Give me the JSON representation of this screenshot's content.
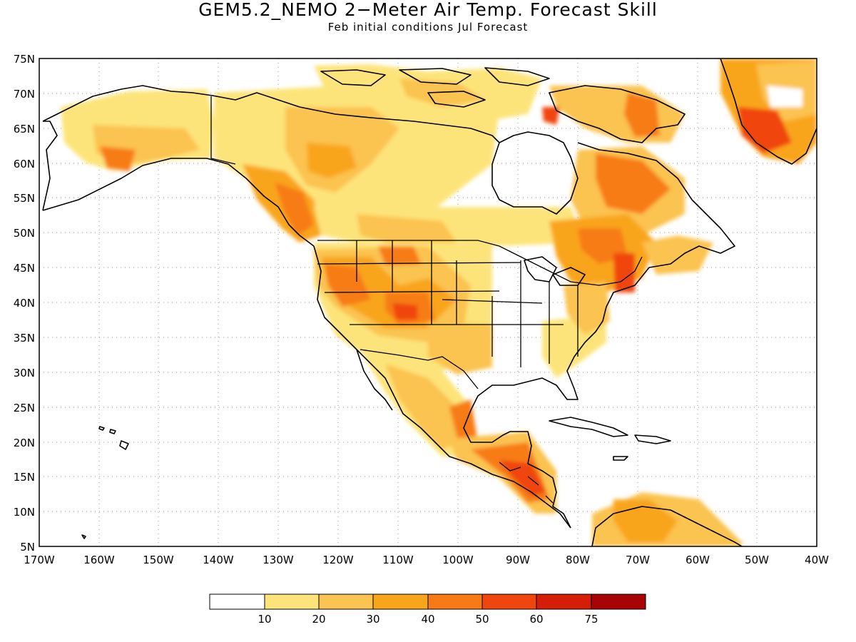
{
  "title": "GEM5.2_NEMO 2−Meter Air Temp. Forecast Skill",
  "subtitle": "Feb initial conditions  Jul Forecast",
  "map": {
    "lon_range": [
      -170,
      -40
    ],
    "lat_range": [
      5,
      75
    ],
    "grid": "dotted",
    "lat_ticks": [
      "75N",
      "70N",
      "65N",
      "60N",
      "55N",
      "50N",
      "45N",
      "40N",
      "35N",
      "30N",
      "25N",
      "20N",
      "15N",
      "10N",
      "5N"
    ],
    "lon_ticks": [
      "170W",
      "160W",
      "150W",
      "140W",
      "130W",
      "120W",
      "110W",
      "100W",
      "90W",
      "80W",
      "70W",
      "60W",
      "50W",
      "40W"
    ]
  },
  "colorbar": {
    "colors": [
      "#ffffff",
      "#fde47a",
      "#fbc34f",
      "#f9a51c",
      "#f77b14",
      "#f0450c",
      "#d51d08",
      "#a80405"
    ],
    "labels": [
      "10",
      "20",
      "30",
      "40",
      "50",
      "60",
      "75"
    ]
  }
}
